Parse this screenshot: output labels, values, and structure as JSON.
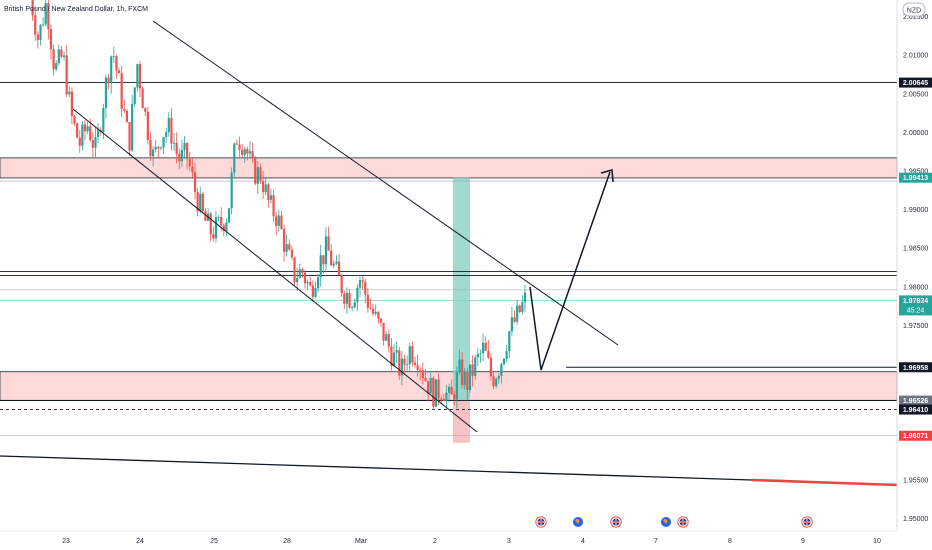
{
  "chart_data": {
    "type": "candlestick",
    "title": "British Pound / New Zealand Dollar, 1h, FXCM",
    "currency_badge": "NZD",
    "x_tick_labels": [
      "23",
      "24",
      "25",
      "28",
      "Mar",
      "2",
      "3",
      "4",
      "7",
      "8",
      "9",
      "10"
    ],
    "y_tick_labels": [
      {
        "label": "2.01500",
        "value": 2.015
      },
      {
        "label": "2.01000",
        "value": 2.01
      },
      {
        "label": "2.00500",
        "value": 2.005
      },
      {
        "label": "2.00000",
        "value": 2.0
      },
      {
        "label": "1.99500",
        "value": 1.995
      },
      {
        "label": "1.99000",
        "value": 1.99
      },
      {
        "label": "1.98500",
        "value": 1.985
      },
      {
        "label": "1.98000",
        "value": 1.98
      },
      {
        "label": "1.97500",
        "value": 1.975
      },
      {
        "label": "1.95500",
        "value": 1.955
      },
      {
        "label": "1.95000",
        "value": 1.95
      }
    ],
    "ylim": [
      1.9485,
      2.0165
    ],
    "price_labels": [
      {
        "label": "2.00645",
        "value": 2.00645,
        "style": "black"
      },
      {
        "label": "1.99413",
        "value": 1.99413,
        "style": "teal"
      },
      {
        "label": "1.97824",
        "value": 1.97824,
        "style": "teal",
        "countdown": "45:24"
      },
      {
        "label": "1.96958",
        "value": 1.96958,
        "style": "black"
      },
      {
        "label": "1.96526",
        "value": 1.96526,
        "style": "gray"
      },
      {
        "label": "1.96410",
        "value": 1.9641,
        "style": "black"
      },
      {
        "label": "1.96071",
        "value": 1.96071,
        "style": "red"
      }
    ],
    "horizontal_levels": [
      2.00645,
      1.9963,
      1.9946,
      1.9937,
      1.98198,
      1.98145,
      1.9796,
      1.97824,
      1.9685,
      1.96526,
      1.96071
    ],
    "supply_zone": [
      1.9941,
      1.9967
    ],
    "demand_zone": [
      1.9653,
      1.969
    ],
    "candle_path": [
      2.018,
      2.012,
      2.017,
      2.008,
      2.01,
      2.002,
      1.9985,
      2.001,
      1.9975,
      2.005,
      2.011,
      2.005,
      1.9985,
      2.009,
      2.002,
      1.9965,
      2.0,
      2.0005,
      1.9965,
      1.997,
      1.9925,
      1.989,
      1.987,
      1.988,
      1.9895,
      1.9995,
      1.9985,
      1.995,
      1.9945,
      1.9905,
      1.989,
      1.985,
      1.9815,
      1.982,
      1.9795,
      1.983,
      1.985,
      1.982,
      1.9795,
      1.9785,
      1.981,
      1.978,
      1.9755,
      1.9735,
      1.971,
      1.969,
      1.972,
      1.971,
      1.968,
      1.966,
      1.967,
      1.965,
      1.969,
      1.9675,
      1.97,
      1.972,
      1.968,
      1.97,
      1.974,
      1.976,
      1.9782
    ],
    "legend": null,
    "grid": false
  }
}
